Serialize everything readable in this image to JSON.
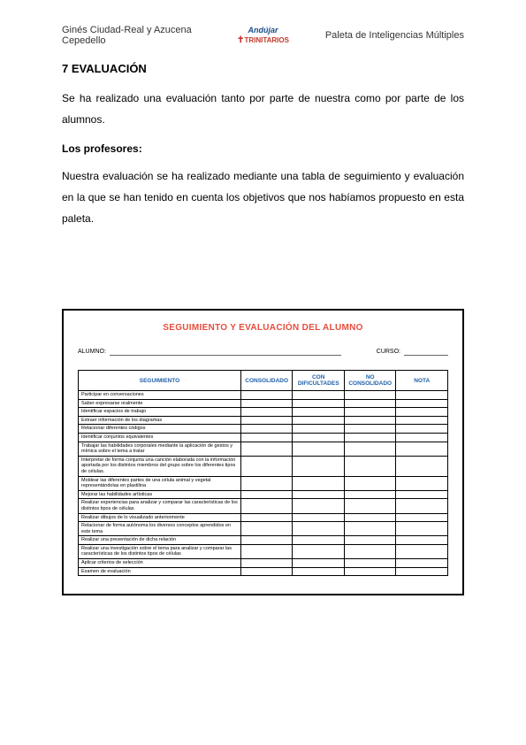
{
  "header": {
    "authors": "Ginés Ciudad-Real y Azucena Cepedello",
    "logo_top": "Andújar",
    "logo_bottom": "TRINITARIOS",
    "doc_title": "Paleta de Inteligencias Múltiples"
  },
  "section": {
    "title": "7 EVALUACIÓN",
    "para1": "Se ha realizado una evaluación tanto por parte de nuestra como por parte de los alumnos.",
    "subtitle": "Los profesores:",
    "para2": "Nuestra evaluación se ha realizado mediante una tabla de seguimiento y evaluación en la que se han tenido en cuenta los objetivos que nos habíamos propuesto en esta paleta."
  },
  "eval_box": {
    "title": "SEGUIMIENTO Y EVALUACIÓN DEL  ALUMNO",
    "alumno_label": "ALUMNO:",
    "curso_label": "CURSO:",
    "columns": [
      "SEGUIMIENTO",
      "CONSOLIDADO",
      "CON DIFICULTADES",
      "NO CONSOLIDADO",
      "NOTA"
    ],
    "rows": [
      "Participar en conversaciones",
      "Saber expresarse oralmente",
      "Identificar espacios de trabajo",
      "Extraer información de los diagramas",
      "Relacionar diferentes códigos",
      "Identificar conjuntos equivalentes",
      "Trabajar las habilidades corporales mediante la aplicación de gestos y mímica sobre el tema a tratar",
      "Interpretar de forma conjunta una canción elaborada con la información aportada por los distintos miembros del grupo sobre los diferentes tipos de células.",
      "Moldear las diferentes partes de una célula animal y vegetal representándolas en plastilina",
      "Mejorar las habilidades artísticas",
      "Realizar experiencias para analizar y comparar las características de los distintos tipos de células",
      "Realizar dibujos de lo visualizado anteriormente",
      "Relacionar de forma autónoma los diversos conceptos aprendidos en este tema",
      "Realizar una presentación de dicha relación",
      "Realizar una investigación sobre el tema para analizar y comparar las características de los distintos tipos de células",
      "Aplicar criterios de selección",
      "Examen de evaluación"
    ]
  }
}
